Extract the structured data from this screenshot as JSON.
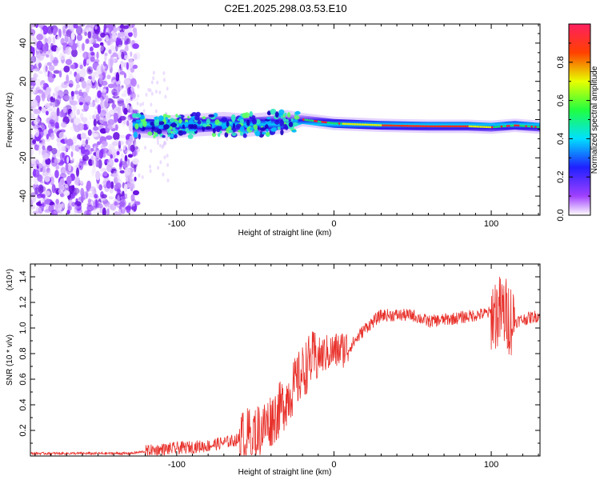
{
  "chart_data": [
    {
      "type": "heatmap",
      "title": "C2E1.2025.298.03.53.E10",
      "xlabel": "Height of straight line (km)",
      "ylabel": "Frequency (Hz)",
      "xlim": [
        -193,
        131
      ],
      "ylim": [
        -50,
        50
      ],
      "xticks": [
        -100,
        0,
        100
      ],
      "yticks": [
        -40,
        -20,
        0,
        20,
        40
      ],
      "colorbar": {
        "label": "Normalized spectral amplitude",
        "range": [
          0,
          1
        ],
        "ticks": [
          0.0,
          0.2,
          0.4,
          0.6,
          0.8
        ]
      },
      "centerline": [
        {
          "x": -128,
          "y": -3
        },
        {
          "x": -110,
          "y": -4
        },
        {
          "x": -90,
          "y": -3
        },
        {
          "x": -70,
          "y": -2
        },
        {
          "x": -55,
          "y": -3
        },
        {
          "x": -40,
          "y": -2
        },
        {
          "x": -30,
          "y": -1
        },
        {
          "x": -20,
          "y": 0
        },
        {
          "x": 0,
          "y": -2
        },
        {
          "x": 30,
          "y": -3
        },
        {
          "x": 60,
          "y": -3.5
        },
        {
          "x": 85,
          "y": -3.5
        },
        {
          "x": 100,
          "y": -4
        },
        {
          "x": 115,
          "y": -3
        },
        {
          "x": 131,
          "y": -4
        }
      ]
    },
    {
      "type": "line",
      "xlabel": "Height of straight line (km)",
      "ylabel": "SNR (10 * v/v)",
      "y_scale_label": "(x10⁴)",
      "xlim": [
        -193,
        131
      ],
      "ylim": [
        0,
        1.5
      ],
      "xticks": [
        -100,
        0,
        100
      ],
      "yticks": [
        0.2,
        0.4,
        0.6,
        0.8,
        1.0,
        1.2,
        1.4
      ],
      "series": [
        {
          "name": "SNR",
          "color": "#e8302a",
          "trend": [
            {
              "x": -193,
              "y": 0.02
            },
            {
              "x": -130,
              "y": 0.02
            },
            {
              "x": -110,
              "y": 0.05
            },
            {
              "x": -80,
              "y": 0.08
            },
            {
              "x": -60,
              "y": 0.13
            },
            {
              "x": -45,
              "y": 0.22
            },
            {
              "x": -35,
              "y": 0.35
            },
            {
              "x": -25,
              "y": 0.55
            },
            {
              "x": -15,
              "y": 0.75
            },
            {
              "x": -5,
              "y": 0.8
            },
            {
              "x": 10,
              "y": 0.85
            },
            {
              "x": 20,
              "y": 1.0
            },
            {
              "x": 30,
              "y": 1.1
            },
            {
              "x": 50,
              "y": 1.1
            },
            {
              "x": 60,
              "y": 1.05
            },
            {
              "x": 80,
              "y": 1.08
            },
            {
              "x": 100,
              "y": 1.12
            },
            {
              "x": 108,
              "y": 1.12
            },
            {
              "x": 115,
              "y": 1.05
            },
            {
              "x": 131,
              "y": 1.1
            }
          ]
        }
      ]
    }
  ]
}
